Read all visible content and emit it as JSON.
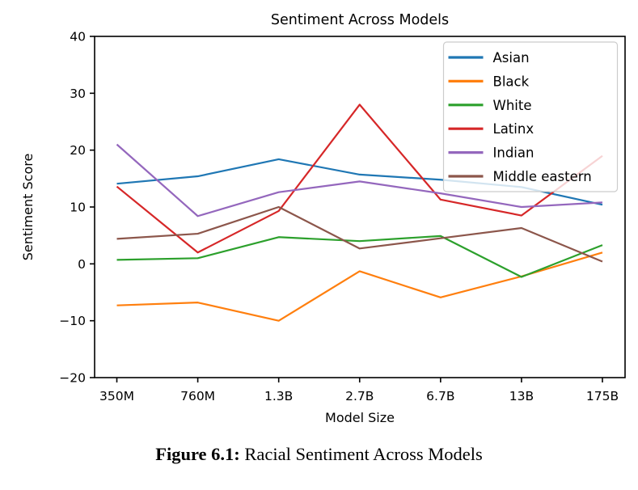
{
  "caption": {
    "label": "Figure 6.1:",
    "text": " Racial Sentiment Across Models"
  },
  "chart_data": {
    "type": "line",
    "title": "Sentiment Across Models",
    "xlabel": "Model Size",
    "ylabel": "Sentiment Score",
    "categories": [
      "350M",
      "760M",
      "1.3B",
      "2.7B",
      "6.7B",
      "13B",
      "175B"
    ],
    "ylim": [
      -20,
      40
    ],
    "yticks": [
      40,
      30,
      20,
      10,
      0,
      -10,
      -20
    ],
    "ytick_labels": [
      "40",
      "30",
      "20",
      "10",
      "0",
      "−10",
      "−20"
    ],
    "grid": false,
    "legend_position": "upper right",
    "axis_color": "#000000",
    "text_color": "#000000",
    "legend_border_color": "#cccccc",
    "series": [
      {
        "name": "Asian",
        "color": "#1f77b4",
        "values": [
          14.1,
          15.4,
          18.4,
          15.7,
          14.8,
          13.5,
          10.4
        ]
      },
      {
        "name": "Black",
        "color": "#ff7f0e",
        "values": [
          -7.3,
          -6.8,
          -10.0,
          -1.3,
          -5.9,
          -2.2,
          2.0
        ]
      },
      {
        "name": "White",
        "color": "#2ca02c",
        "values": [
          0.7,
          1.0,
          4.7,
          4.0,
          4.9,
          -2.3,
          3.3
        ]
      },
      {
        "name": "Latinx",
        "color": "#d62728",
        "values": [
          13.6,
          2.0,
          9.3,
          28.0,
          11.3,
          8.5,
          19.0
        ]
      },
      {
        "name": "Indian",
        "color": "#9467bd",
        "values": [
          21.0,
          8.4,
          12.6,
          14.5,
          12.4,
          10.0,
          10.8
        ]
      },
      {
        "name": "Middle eastern",
        "color": "#8c564b",
        "values": [
          4.4,
          5.3,
          10.0,
          2.7,
          4.5,
          6.3,
          0.4
        ]
      }
    ]
  }
}
